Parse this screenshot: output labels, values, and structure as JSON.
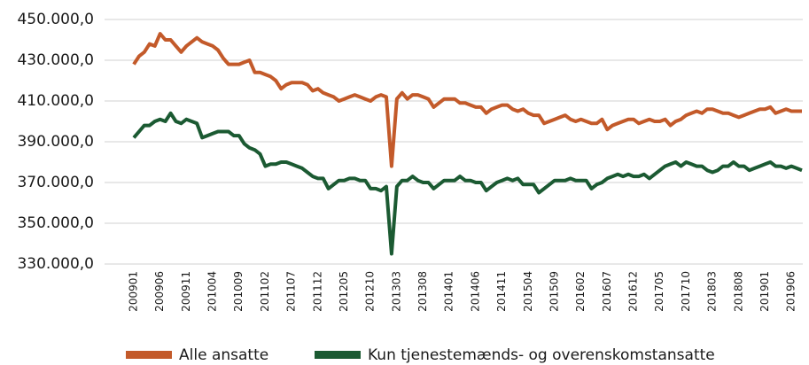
{
  "chart_data": {
    "type": "line",
    "categories": [
      "200901",
      null,
      null,
      null,
      null,
      "200906",
      null,
      null,
      null,
      null,
      "200911",
      null,
      null,
      null,
      null,
      "201004",
      null,
      null,
      null,
      null,
      "201009",
      null,
      null,
      null,
      null,
      "201102",
      null,
      null,
      null,
      null,
      "201107",
      null,
      null,
      null,
      null,
      "201112",
      null,
      null,
      null,
      null,
      "201205",
      null,
      null,
      null,
      null,
      "201210",
      null,
      null,
      null,
      null,
      "201303",
      null,
      null,
      null,
      null,
      "201308",
      null,
      null,
      null,
      null,
      "201401",
      null,
      null,
      null,
      null,
      "201406",
      null,
      null,
      null,
      null,
      "201411",
      null,
      null,
      null,
      null,
      "201504",
      null,
      null,
      null,
      null,
      "201509",
      null,
      null,
      null,
      null,
      "201602",
      null,
      null,
      null,
      null,
      "201607",
      null,
      null,
      null,
      null,
      "201612",
      null,
      null,
      null,
      null,
      "201705",
      null,
      null,
      null,
      null,
      "201710",
      null,
      null,
      null,
      null,
      "201803",
      null,
      null,
      null,
      null,
      "201808",
      null,
      null,
      null,
      null,
      "201901",
      null,
      null,
      null,
      null,
      "201906",
      null,
      null
    ],
    "series": [
      {
        "name": "Alle ansatte",
        "color": "#c35a2a",
        "values": [
          428000,
          432000,
          434000,
          438000,
          437000,
          443000,
          440000,
          440000,
          437000,
          434000,
          437000,
          439000,
          441000,
          439000,
          438000,
          437000,
          435000,
          431000,
          428000,
          428000,
          428000,
          429000,
          430000,
          424000,
          424000,
          423000,
          422000,
          420000,
          416000,
          418000,
          419000,
          419000,
          419000,
          418000,
          415000,
          416000,
          414000,
          413000,
          412000,
          410000,
          411000,
          412000,
          413000,
          412000,
          411000,
          410000,
          412000,
          413000,
          412000,
          378000,
          411000,
          414000,
          411000,
          413000,
          413000,
          412000,
          411000,
          407000,
          409000,
          411000,
          411000,
          411000,
          409000,
          409000,
          408000,
          407000,
          407000,
          404000,
          406000,
          407000,
          408000,
          408000,
          406000,
          405000,
          406000,
          404000,
          403000,
          403000,
          399000,
          400000,
          401000,
          402000,
          403000,
          401000,
          400000,
          401000,
          400000,
          399000,
          399000,
          401000,
          396000,
          398000,
          399000,
          400000,
          401000,
          401000,
          399000,
          400000,
          401000,
          400000,
          400000,
          401000,
          398000,
          400000,
          401000,
          403000,
          404000,
          405000,
          404000,
          406000,
          406000,
          405000,
          404000,
          404000,
          403000,
          402000,
          403000,
          404000,
          405000,
          406000,
          406000,
          407000,
          404000,
          405000,
          406000,
          405000,
          405000,
          405000
        ]
      },
      {
        "name": "Kun tjenestemænds- og overenskomstansatte",
        "color": "#1b5a32",
        "values": [
          392000,
          395000,
          398000,
          398000,
          400000,
          401000,
          400000,
          404000,
          400000,
          399000,
          401000,
          400000,
          399000,
          392000,
          393000,
          394000,
          395000,
          395000,
          395000,
          393000,
          393000,
          389000,
          387000,
          386000,
          384000,
          378000,
          379000,
          379000,
          380000,
          380000,
          379000,
          378000,
          377000,
          375000,
          373000,
          372000,
          372000,
          367000,
          369000,
          371000,
          371000,
          372000,
          372000,
          371000,
          371000,
          367000,
          367000,
          366000,
          368000,
          335000,
          368000,
          371000,
          371000,
          373000,
          371000,
          370000,
          370000,
          367000,
          369000,
          371000,
          371000,
          371000,
          373000,
          371000,
          371000,
          370000,
          370000,
          366000,
          368000,
          370000,
          371000,
          372000,
          371000,
          372000,
          369000,
          369000,
          369000,
          365000,
          367000,
          369000,
          371000,
          371000,
          371000,
          372000,
          371000,
          371000,
          371000,
          367000,
          369000,
          370000,
          372000,
          373000,
          374000,
          373000,
          374000,
          373000,
          373000,
          374000,
          372000,
          374000,
          376000,
          378000,
          379000,
          380000,
          378000,
          380000,
          379000,
          378000,
          378000,
          376000,
          375000,
          376000,
          378000,
          378000,
          380000,
          378000,
          378000,
          376000,
          377000,
          378000,
          379000,
          380000,
          378000,
          378000,
          377000,
          378000,
          377000,
          376000
        ]
      }
    ],
    "ylim": [
      330000,
      450000
    ],
    "yticks": [
      {
        "value": 330000,
        "label": "330.000,0"
      },
      {
        "value": 350000,
        "label": "350.000,0"
      },
      {
        "value": 370000,
        "label": "370.000,0"
      },
      {
        "value": 390000,
        "label": "390.000,0"
      },
      {
        "value": 410000,
        "label": "410.000,0"
      },
      {
        "value": 430000,
        "label": "430.000,0"
      },
      {
        "value": 450000,
        "label": "450.000,0"
      }
    ],
    "grid": true,
    "legend": "bottom"
  }
}
